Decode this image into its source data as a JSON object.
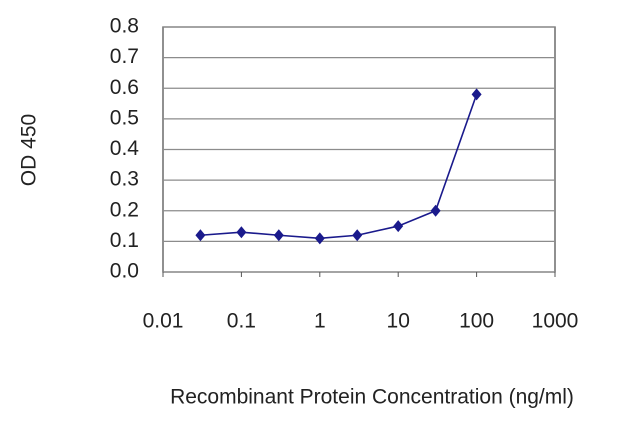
{
  "chart_data": {
    "type": "line",
    "x_label": "Recombinant Protein Concentration (ng/ml)",
    "y_label": "OD 450",
    "x": [
      0.03,
      0.1,
      0.3,
      1,
      3,
      10,
      30,
      100
    ],
    "series": [
      {
        "color": "#1a1a8c",
        "values": [
          0.12,
          0.13,
          0.12,
          0.11,
          0.12,
          0.15,
          0.2,
          0.58
        ]
      }
    ],
    "xscale": "log",
    "xlim": [
      0.01,
      1000
    ],
    "xticks": [
      0.01,
      0.1,
      1,
      10,
      100,
      1000
    ],
    "ylim": [
      0,
      0.8
    ],
    "yticks": [
      {
        "value": 0,
        "label": "0.0"
      },
      0.1,
      0.2,
      0.3,
      0.4,
      0.5,
      0.6,
      0.7,
      0.8
    ],
    "grid": true
  }
}
